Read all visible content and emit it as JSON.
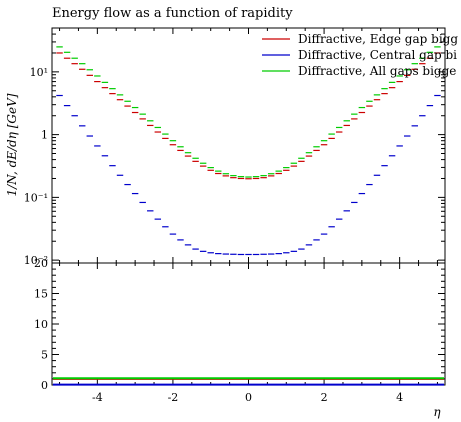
{
  "chart_data": {
    "type": "scatter",
    "title": "Energy flow as a function of rapidity",
    "xlabel": "η",
    "ylabel": "1/N, dE/dη [GeV]",
    "x_tick_labels": [
      "-4",
      "-2",
      "0",
      "2",
      "4"
    ],
    "y_tick_labels": [
      "10⁻²",
      "10⁻¹",
      "1",
      "10¹"
    ],
    "ratio_tick_labels": [
      "0",
      "5",
      "10",
      "15",
      "20"
    ],
    "xlim": [
      -5.2,
      5.2
    ],
    "ylim": [
      0.009,
      50
    ],
    "yscale": "log",
    "ratio_ylim": [
      0,
      20
    ],
    "legend_position": "top-right",
    "x": [
      -5.0,
      -4.8,
      -4.6,
      -4.4,
      -4.2,
      -4.0,
      -3.8,
      -3.6,
      -3.4,
      -3.2,
      -3.0,
      -2.8,
      -2.6,
      -2.4,
      -2.2,
      -2.0,
      -1.8,
      -1.6,
      -1.4,
      -1.2,
      -1.0,
      -0.8,
      -0.6,
      -0.4,
      -0.2,
      0.0,
      0.2,
      0.4,
      0.6,
      0.8,
      1.0,
      1.2,
      1.4,
      1.6,
      1.8,
      2.0,
      2.2,
      2.4,
      2.6,
      2.8,
      3.0,
      3.2,
      3.4,
      3.6,
      3.8,
      4.0,
      4.2,
      4.4,
      4.6,
      4.8,
      5.0
    ],
    "series": [
      {
        "name": "Diffractive, Edge gap bigg",
        "color": "#cc0000",
        "values": [
          20,
          16.5,
          13.5,
          11,
          8.8,
          7,
          5.6,
          4.5,
          3.6,
          2.85,
          2.25,
          1.78,
          1.4,
          1.1,
          0.87,
          0.69,
          0.56,
          0.455,
          0.375,
          0.315,
          0.27,
          0.24,
          0.22,
          0.206,
          0.2,
          0.198,
          0.2,
          0.206,
          0.22,
          0.24,
          0.27,
          0.315,
          0.375,
          0.455,
          0.56,
          0.69,
          0.87,
          1.1,
          1.4,
          1.78,
          2.25,
          2.85,
          3.6,
          4.5,
          5.6,
          7,
          8.8,
          11,
          13.5,
          16.5,
          20
        ]
      },
      {
        "name": "Diffractive, Central gap bi",
        "color": "#0000cc",
        "values": [
          4.2,
          2.9,
          2.0,
          1.38,
          0.95,
          0.66,
          0.46,
          0.32,
          0.225,
          0.16,
          0.115,
          0.083,
          0.061,
          0.045,
          0.034,
          0.026,
          0.021,
          0.0175,
          0.015,
          0.0138,
          0.0131,
          0.0127,
          0.0125,
          0.0124,
          0.0123,
          0.0123,
          0.0123,
          0.0124,
          0.0125,
          0.0127,
          0.0131,
          0.0138,
          0.015,
          0.0175,
          0.021,
          0.026,
          0.034,
          0.045,
          0.061,
          0.083,
          0.115,
          0.16,
          0.225,
          0.32,
          0.46,
          0.66,
          0.95,
          1.38,
          2.0,
          2.9,
          4.2
        ]
      },
      {
        "name": "Diffractive, All gaps bigge",
        "color": "#00cc00",
        "values": [
          25,
          20.5,
          16.5,
          13.5,
          10.8,
          8.6,
          6.8,
          5.4,
          4.3,
          3.4,
          2.7,
          2.12,
          1.66,
          1.3,
          1.02,
          0.8,
          0.64,
          0.515,
          0.42,
          0.35,
          0.298,
          0.262,
          0.238,
          0.222,
          0.214,
          0.211,
          0.214,
          0.222,
          0.238,
          0.262,
          0.298,
          0.35,
          0.42,
          0.515,
          0.64,
          0.8,
          1.02,
          1.3,
          1.66,
          2.12,
          2.7,
          3.4,
          4.3,
          5.4,
          6.8,
          8.6,
          10.8,
          13.5,
          16.5,
          20.5,
          25
        ]
      }
    ],
    "ratio_series": [
      {
        "name": "Diffractive, Edge gap bigg",
        "color": "#cc0000",
        "value": 1.0
      },
      {
        "name": "Diffractive, Central gap bi",
        "color": "#0000cc",
        "value": 0.06
      },
      {
        "name": "Diffractive, All gaps bigge",
        "color": "#00cc00",
        "value": 1.1
      }
    ]
  }
}
